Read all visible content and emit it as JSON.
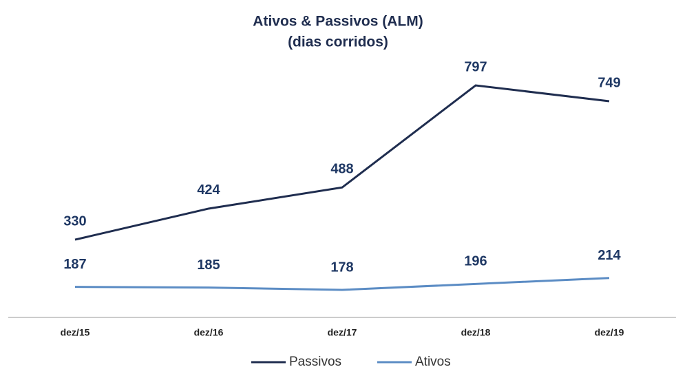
{
  "chart_data": {
    "type": "line",
    "title": "Ativos & Passivos (ALM)",
    "subtitle": "(dias corridos)",
    "categories": [
      "dez/15",
      "dez/16",
      "dez/17",
      "dez/18",
      "dez/19"
    ],
    "series": [
      {
        "name": "Passivos",
        "color": "#1f2d4f",
        "values": [
          330,
          424,
          488,
          797,
          749
        ]
      },
      {
        "name": "Ativos",
        "color": "#5b8cc4",
        "values": [
          187,
          185,
          178,
          196,
          214
        ]
      }
    ]
  }
}
